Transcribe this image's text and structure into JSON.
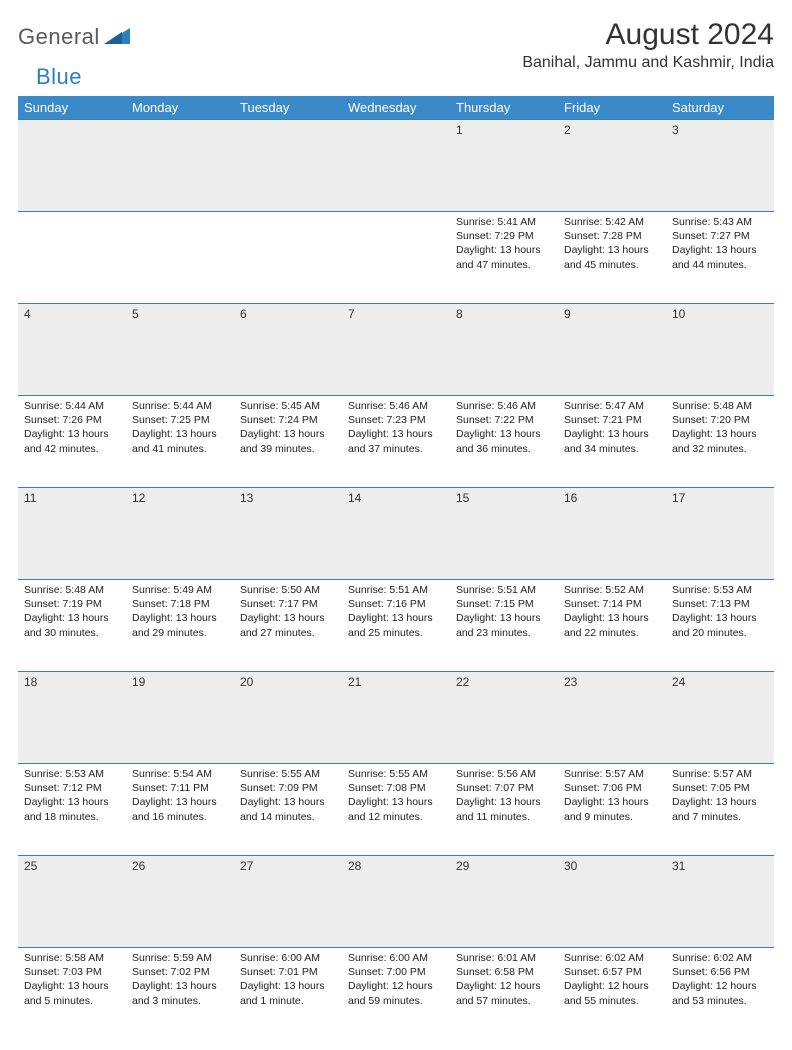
{
  "brand": {
    "general": "General",
    "blue": "Blue"
  },
  "title": "August 2024",
  "location": "Banihal, Jammu and Kashmir, India",
  "colors": {
    "header_bg": "#3a8ac9",
    "header_fg": "#ffffff",
    "daynum_bg": "#ededed",
    "border": "#3a7fb0",
    "logo_gray": "#5a5a5a",
    "logo_blue": "#2a7fbf"
  },
  "weekdays": [
    "Sunday",
    "Monday",
    "Tuesday",
    "Wednesday",
    "Thursday",
    "Friday",
    "Saturday"
  ],
  "layout": {
    "first_weekday_index": 4,
    "days_in_month": 31
  },
  "days": {
    "1": {
      "sunrise": "5:41 AM",
      "sunset": "7:29 PM",
      "daylight": "13 hours and 47 minutes."
    },
    "2": {
      "sunrise": "5:42 AM",
      "sunset": "7:28 PM",
      "daylight": "13 hours and 45 minutes."
    },
    "3": {
      "sunrise": "5:43 AM",
      "sunset": "7:27 PM",
      "daylight": "13 hours and 44 minutes."
    },
    "4": {
      "sunrise": "5:44 AM",
      "sunset": "7:26 PM",
      "daylight": "13 hours and 42 minutes."
    },
    "5": {
      "sunrise": "5:44 AM",
      "sunset": "7:25 PM",
      "daylight": "13 hours and 41 minutes."
    },
    "6": {
      "sunrise": "5:45 AM",
      "sunset": "7:24 PM",
      "daylight": "13 hours and 39 minutes."
    },
    "7": {
      "sunrise": "5:46 AM",
      "sunset": "7:23 PM",
      "daylight": "13 hours and 37 minutes."
    },
    "8": {
      "sunrise": "5:46 AM",
      "sunset": "7:22 PM",
      "daylight": "13 hours and 36 minutes."
    },
    "9": {
      "sunrise": "5:47 AM",
      "sunset": "7:21 PM",
      "daylight": "13 hours and 34 minutes."
    },
    "10": {
      "sunrise": "5:48 AM",
      "sunset": "7:20 PM",
      "daylight": "13 hours and 32 minutes."
    },
    "11": {
      "sunrise": "5:48 AM",
      "sunset": "7:19 PM",
      "daylight": "13 hours and 30 minutes."
    },
    "12": {
      "sunrise": "5:49 AM",
      "sunset": "7:18 PM",
      "daylight": "13 hours and 29 minutes."
    },
    "13": {
      "sunrise": "5:50 AM",
      "sunset": "7:17 PM",
      "daylight": "13 hours and 27 minutes."
    },
    "14": {
      "sunrise": "5:51 AM",
      "sunset": "7:16 PM",
      "daylight": "13 hours and 25 minutes."
    },
    "15": {
      "sunrise": "5:51 AM",
      "sunset": "7:15 PM",
      "daylight": "13 hours and 23 minutes."
    },
    "16": {
      "sunrise": "5:52 AM",
      "sunset": "7:14 PM",
      "daylight": "13 hours and 22 minutes."
    },
    "17": {
      "sunrise": "5:53 AM",
      "sunset": "7:13 PM",
      "daylight": "13 hours and 20 minutes."
    },
    "18": {
      "sunrise": "5:53 AM",
      "sunset": "7:12 PM",
      "daylight": "13 hours and 18 minutes."
    },
    "19": {
      "sunrise": "5:54 AM",
      "sunset": "7:11 PM",
      "daylight": "13 hours and 16 minutes."
    },
    "20": {
      "sunrise": "5:55 AM",
      "sunset": "7:09 PM",
      "daylight": "13 hours and 14 minutes."
    },
    "21": {
      "sunrise": "5:55 AM",
      "sunset": "7:08 PM",
      "daylight": "13 hours and 12 minutes."
    },
    "22": {
      "sunrise": "5:56 AM",
      "sunset": "7:07 PM",
      "daylight": "13 hours and 11 minutes."
    },
    "23": {
      "sunrise": "5:57 AM",
      "sunset": "7:06 PM",
      "daylight": "13 hours and 9 minutes."
    },
    "24": {
      "sunrise": "5:57 AM",
      "sunset": "7:05 PM",
      "daylight": "13 hours and 7 minutes."
    },
    "25": {
      "sunrise": "5:58 AM",
      "sunset": "7:03 PM",
      "daylight": "13 hours and 5 minutes."
    },
    "26": {
      "sunrise": "5:59 AM",
      "sunset": "7:02 PM",
      "daylight": "13 hours and 3 minutes."
    },
    "27": {
      "sunrise": "6:00 AM",
      "sunset": "7:01 PM",
      "daylight": "13 hours and 1 minute."
    },
    "28": {
      "sunrise": "6:00 AM",
      "sunset": "7:00 PM",
      "daylight": "12 hours and 59 minutes."
    },
    "29": {
      "sunrise": "6:01 AM",
      "sunset": "6:58 PM",
      "daylight": "12 hours and 57 minutes."
    },
    "30": {
      "sunrise": "6:02 AM",
      "sunset": "6:57 PM",
      "daylight": "12 hours and 55 minutes."
    },
    "31": {
      "sunrise": "6:02 AM",
      "sunset": "6:56 PM",
      "daylight": "12 hours and 53 minutes."
    }
  },
  "labels": {
    "sunrise": "Sunrise: ",
    "sunset": "Sunset: ",
    "daylight": "Daylight: "
  }
}
